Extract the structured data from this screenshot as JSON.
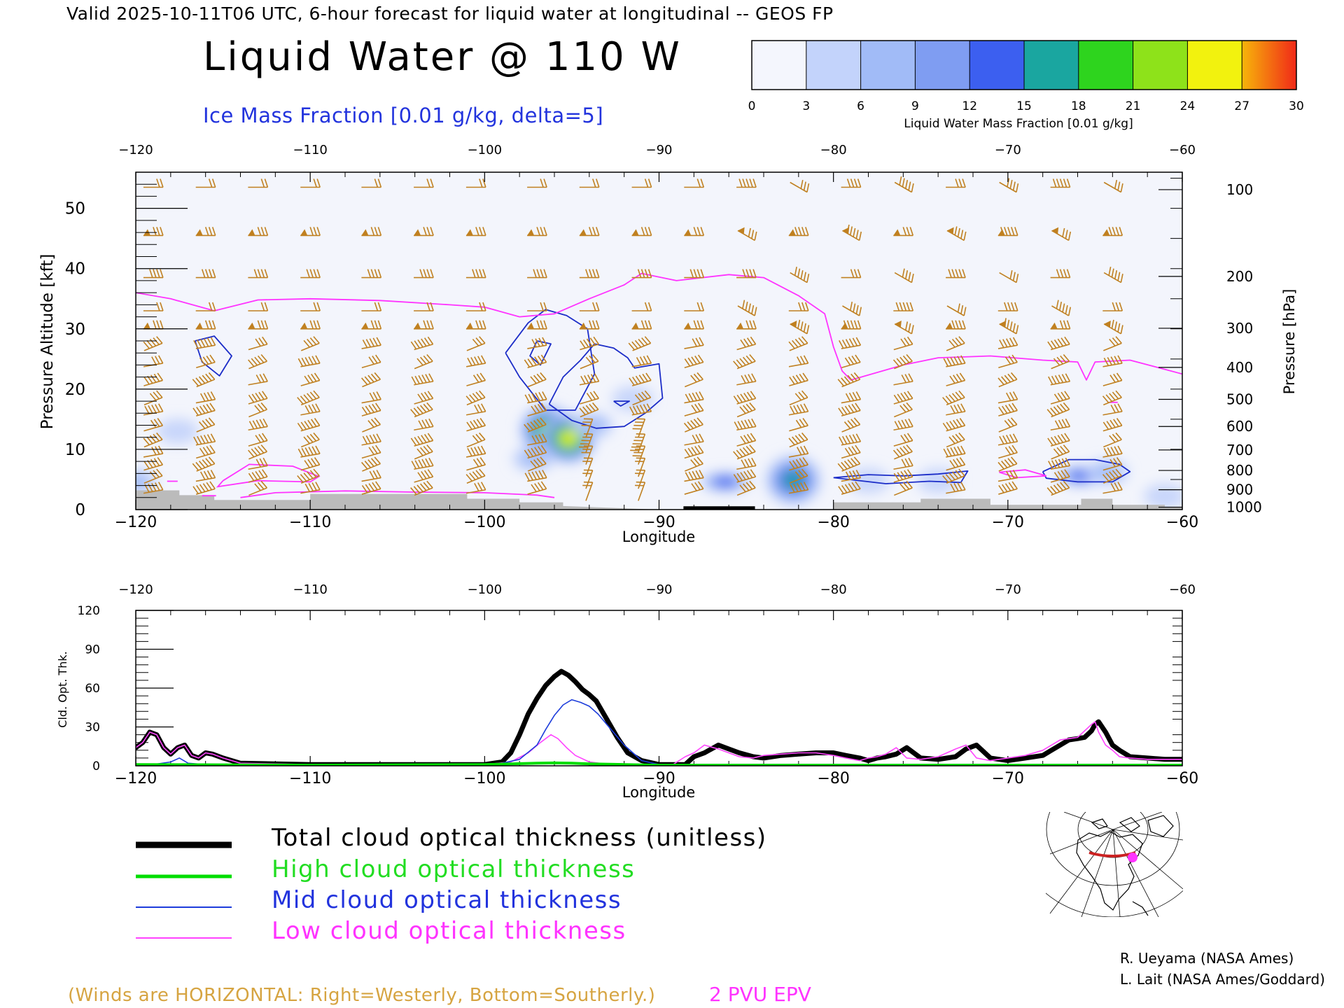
{
  "header": {
    "valid_line": "Valid 2025-10-11T06 UTC, 6-hour forecast for liquid water at longitudinal -- GEOS FP",
    "main_title": "Liquid Water @ 110 W",
    "ice_subtitle": "Ice Mass Fraction [0.01 g/kg, delta=5]"
  },
  "colorbar": {
    "ticks": [
      "0",
      "3",
      "6",
      "9",
      "12",
      "15",
      "18",
      "21",
      "24",
      "27",
      "30"
    ],
    "label": "Liquid Water Mass Fraction [0.01 g/kg]",
    "colors": [
      "#f4f6fd",
      "#c3d3fb",
      "#a1bbf7",
      "#7f9df2",
      "#3c5ff0",
      "#1aa6a0",
      "#2ed41e",
      "#8ee21a",
      "#f2f20e",
      "#f7b50a",
      "#f4700a"
    ]
  },
  "colors": {
    "wind_barb": "#c08020",
    "epv": "#ff33ff",
    "ice_contour": "#1c2dc8",
    "terrain": "#bbbbbb",
    "total": "#000000",
    "high": "#00dd00",
    "mid": "#1d3ddb",
    "low": "#ff44ff"
  },
  "chart_data": [
    {
      "type": "heatmap",
      "name": "liquid-water-cross-section",
      "title": "Liquid Water @ 110 W",
      "xlabel": "Longitude",
      "ylabel": "Pressure Altitude [kft]",
      "ylabel_right": "Pressure [hPa]",
      "xlim": [
        -120,
        -60
      ],
      "ylim": [
        0,
        56
      ],
      "x_ticks": [
        -120,
        -110,
        -100,
        -90,
        -80,
        -70,
        -60
      ],
      "x_tick_labels": [
        "−120",
        "−110",
        "−100",
        "−90",
        "−80",
        "−70",
        "−60"
      ],
      "y_ticks": [
        0,
        10,
        20,
        30,
        40,
        50
      ],
      "y_tick_labels": [
        "0",
        "10",
        "20",
        "30",
        "40",
        "50"
      ],
      "pressure_ticks": [
        "100",
        "200",
        "300",
        "400",
        "500",
        "600",
        "700",
        "800",
        "900",
        "1000"
      ],
      "pressure_tick_kft": [
        53.1,
        38.7,
        30.1,
        23.6,
        18.3,
        13.8,
        9.9,
        6.5,
        3.3,
        0.4
      ],
      "liquid_water_blobs": [
        {
          "lon": -96.4,
          "kft": 13.2,
          "value": 22
        },
        {
          "lon": -95.2,
          "kft": 11.8,
          "value": 26
        },
        {
          "lon": -97.2,
          "kft": 8.4,
          "value": 8
        },
        {
          "lon": -93.8,
          "kft": 14.0,
          "value": 6
        },
        {
          "lon": -91.5,
          "kft": 18.4,
          "value": 4
        },
        {
          "lon": -117.6,
          "kft": 13.0,
          "value": 5
        },
        {
          "lon": -120,
          "kft": 4.6,
          "value": 7
        },
        {
          "lon": -86.2,
          "kft": 4.6,
          "value": 14
        },
        {
          "lon": -82.3,
          "kft": 4.9,
          "value": 17
        },
        {
          "lon": -78,
          "kft": 4.8,
          "value": 5
        },
        {
          "lon": -74,
          "kft": 4.8,
          "value": 5
        },
        {
          "lon": -65.8,
          "kft": 5.6,
          "value": 12
        },
        {
          "lon": -64.3,
          "kft": 6.2,
          "value": 7
        },
        {
          "lon": -61,
          "kft": 2.2,
          "value": 4
        }
      ],
      "epv_2pvu_line": {
        "lon": [
          -120,
          -118,
          -115.5,
          -113,
          -110,
          -106,
          -102,
          -100,
          -98,
          -96,
          -94,
          -92,
          -91,
          -89,
          -86,
          -84,
          -82,
          -80.5,
          -80,
          -79.5,
          -79,
          -76,
          -74,
          -71,
          -68,
          -66,
          -65.5,
          -65,
          -63,
          -60
        ],
        "kft": [
          36,
          35,
          33,
          34.8,
          35,
          34.7,
          34,
          33.6,
          32,
          32.5,
          35,
          37.3,
          39.2,
          38,
          39,
          38.5,
          35.5,
          32.5,
          27,
          23,
          21.5,
          24,
          25.2,
          25.5,
          24.8,
          24.5,
          21.5,
          24.5,
          24.8,
          22.5
        ]
      },
      "ice_contours": [
        {
          "lon": [
            -116.6,
            -115.5,
            -114.5,
            -115.2,
            -116.2,
            -116.6
          ],
          "kft": [
            28,
            28.8,
            25.5,
            22.2,
            24.5,
            28
          ]
        },
        {
          "lon": [
            -98.8,
            -97.5,
            -96.5,
            -95.3,
            -94.1,
            -93.7,
            -94.8,
            -96.5,
            -98,
            -98.8
          ],
          "kft": [
            26,
            31,
            33.2,
            32.2,
            30,
            22.5,
            16.5,
            16.5,
            22,
            26
          ]
        },
        {
          "lon": [
            -97,
            -96.2,
            -96.8,
            -97.4,
            -97
          ],
          "kft": [
            28,
            27.5,
            24,
            25.5,
            28
          ]
        },
        {
          "lon": [
            -96.3,
            -95.5,
            -94.5,
            -93.7,
            -92.6,
            -91.8,
            -91.4,
            -90,
            -89.8,
            -90.8,
            -92,
            -93.6,
            -95,
            -96.3
          ],
          "kft": [
            17.5,
            22,
            24.8,
            27.5,
            26.8,
            25.2,
            23.5,
            24.2,
            18.5,
            16,
            13.8,
            13.5,
            14.8,
            17.5
          ]
        },
        {
          "lon": [
            -92.6,
            -91.7,
            -92.2,
            -92.6
          ],
          "kft": [
            18,
            18,
            17.2,
            18
          ]
        },
        {
          "lon": [
            -80,
            -78,
            -76,
            -74,
            -72.3,
            -72.7,
            -74.5,
            -77,
            -80
          ],
          "kft": [
            5.3,
            5.8,
            5.6,
            5.9,
            6.4,
            4.5,
            4.7,
            4.3,
            5.3
          ]
        },
        {
          "lon": [
            -68,
            -66.5,
            -65,
            -63.6,
            -63,
            -64,
            -66,
            -67.8,
            -68
          ],
          "kft": [
            6.3,
            8.3,
            8.3,
            7.5,
            6.3,
            4.6,
            4.6,
            5.2,
            6.3
          ]
        }
      ],
      "terrain_kft": {
        "lon": [
          -120,
          -117.5,
          -117.5,
          -115.5,
          -115.5,
          -110,
          -110,
          -101,
          -101,
          -98,
          -98,
          -95.5,
          -95.5,
          -90,
          -80,
          -80,
          -75,
          -75,
          -71,
          -71,
          -65.8,
          -65.8,
          -64,
          -64,
          -61,
          -61,
          -60
        ],
        "kft": [
          3.2,
          3.2,
          2.4,
          2.4,
          1.6,
          1.6,
          2.6,
          2.6,
          1.8,
          1.8,
          1.2,
          1.2,
          0.6,
          0,
          0,
          1.2,
          1.2,
          1.8,
          1.8,
          0.8,
          0.8,
          1.8,
          1.8,
          0.8,
          0.8,
          0.5,
          0.5
        ]
      },
      "wind_barbs": {
        "columns_lon": [
          -119,
          -116,
          -113,
          -110,
          -106.5,
          -103.5,
          -100.5,
          -97,
          -94,
          -91,
          -88,
          -85,
          -82,
          -79,
          -76,
          -73,
          -70,
          -67,
          -64
        ],
        "rows_kft": [
          53.5,
          45.5,
          38.5,
          33,
          30,
          27,
          24,
          21,
          18,
          16,
          13.5,
          11,
          9,
          7,
          5,
          3
        ],
        "notes": "orange barbs, westerly flow aloft"
      }
    },
    {
      "type": "line",
      "name": "cloud-optical-thickness",
      "xlabel": "Longitude",
      "ylabel": "Cld. Opt. Thk.",
      "xlim": [
        -120,
        -60
      ],
      "ylim": [
        0,
        120
      ],
      "x_ticks": [
        -120,
        -110,
        -100,
        -90,
        -80,
        -70,
        -60
      ],
      "x_tick_labels": [
        "−120",
        "−110",
        "−100",
        "−90",
        "−80",
        "−70",
        "−60"
      ],
      "y_ticks": [
        0,
        30,
        60,
        90,
        120
      ],
      "y_tick_labels": [
        "0",
        "30",
        "60",
        "90",
        "120"
      ],
      "series": [
        {
          "name": "Total cloud optical thickness (unitless)",
          "key": "total",
          "x": [
            -120,
            -119.6,
            -119.2,
            -118.8,
            -118.4,
            -118,
            -117.6,
            -117.2,
            -116.8,
            -116.4,
            -116,
            -115.6,
            -115,
            -114,
            -110,
            -100,
            -99,
            -98.5,
            -98,
            -97.5,
            -97,
            -96.5,
            -96,
            -95.6,
            -95.2,
            -94.8,
            -94.4,
            -94,
            -93.6,
            -93,
            -92.4,
            -91.8,
            -91,
            -90,
            -89.2,
            -88.5,
            -88,
            -87.4,
            -86.6,
            -86,
            -85.4,
            -84.6,
            -84,
            -83,
            -82,
            -81,
            -80,
            -79.3,
            -78.5,
            -78,
            -77.5,
            -77,
            -76.4,
            -75.8,
            -75,
            -74,
            -73,
            -72.4,
            -71.8,
            -71,
            -70,
            -69,
            -68,
            -67.5,
            -67,
            -66.5,
            -66,
            -65.6,
            -65.2,
            -65,
            -64.8,
            -64.4,
            -64,
            -63.6,
            -63,
            -62,
            -61,
            -60
          ],
          "y": [
            14,
            18,
            26,
            24,
            14,
            9,
            14,
            16,
            8,
            6,
            10,
            9,
            6,
            2,
            1,
            1,
            3,
            10,
            24,
            40,
            52,
            62,
            69,
            73,
            70,
            65,
            59,
            55,
            50,
            36,
            22,
            10,
            4,
            1,
            1,
            1,
            7,
            10,
            16,
            13,
            10,
            7,
            6,
            8,
            9,
            10,
            10,
            8,
            6,
            4,
            6,
            7,
            9,
            14,
            6,
            5,
            7,
            13,
            16,
            6,
            4,
            6,
            8,
            12,
            16,
            20,
            21,
            22,
            27,
            32,
            34,
            26,
            16,
            12,
            7,
            6,
            5,
            5
          ]
        },
        {
          "name": "High cloud optical thickness",
          "key": "high",
          "x": [
            -120,
            -110,
            -100,
            -97,
            -96,
            -95,
            -94,
            -92,
            -90,
            -80,
            -70,
            -60
          ],
          "y": [
            1,
            0.5,
            1,
            2,
            2.2,
            2,
            1.5,
            1,
            0.5,
            0.5,
            0.5,
            0.5
          ]
        },
        {
          "name": "Mid cloud optical thickness",
          "key": "mid",
          "x": [
            -120,
            -119,
            -118,
            -117.5,
            -117,
            -116,
            -115,
            -110,
            -100,
            -99,
            -98,
            -97,
            -96.5,
            -96,
            -95.5,
            -95,
            -94.5,
            -94,
            -93.5,
            -93,
            -92,
            -91,
            -90,
            -60
          ],
          "y": [
            1,
            1,
            3,
            6,
            2,
            1,
            1,
            1,
            1,
            2,
            5,
            16,
            28,
            39,
            47,
            51,
            49,
            46,
            40,
            32,
            16,
            4,
            1,
            1
          ]
        },
        {
          "name": "Low cloud optical thickness",
          "key": "low",
          "x": [
            -120,
            -119.6,
            -119.2,
            -118.8,
            -118.4,
            -118,
            -117.6,
            -117.2,
            -116.8,
            -116.4,
            -116,
            -115.6,
            -115,
            -114,
            -110,
            -100,
            -98.5,
            -97.5,
            -96.8,
            -96.2,
            -95.8,
            -95.3,
            -94.8,
            -94,
            -92.8,
            -90,
            -89.2,
            -88.5,
            -88,
            -87.4,
            -86.6,
            -86,
            -85.4,
            -84.6,
            -84,
            -83,
            -82,
            -81,
            -80,
            -79.3,
            -78.5,
            -78,
            -77.5,
            -77,
            -76.4,
            -75.8,
            -75,
            -74,
            -73,
            -72.4,
            -71.8,
            -71,
            -70,
            -69,
            -68,
            -67.5,
            -67,
            -66.5,
            -66,
            -65.6,
            -65.2,
            -65,
            -64.8,
            -64.4,
            -64,
            -63.6,
            -63,
            -62,
            -61,
            -60
          ],
          "y": [
            14,
            18,
            26,
            24,
            14,
            9,
            14,
            16,
            8,
            6,
            10,
            9,
            6,
            2,
            1,
            1,
            3,
            10,
            18,
            24,
            21,
            14,
            8,
            3,
            1,
            1,
            1,
            7,
            10,
            16,
            13,
            10,
            7,
            6,
            8,
            9,
            10,
            10,
            8,
            6,
            4,
            6,
            7,
            9,
            14,
            6,
            5,
            7,
            13,
            16,
            6,
            4,
            6,
            8,
            12,
            16,
            20,
            21,
            22,
            27,
            32,
            34,
            26,
            16,
            12,
            7,
            6,
            5,
            5,
            5
          ]
        }
      ]
    }
  ],
  "legend": {
    "total": "Total cloud optical thickness (unitless)",
    "high": "High cloud optical thickness",
    "mid": "Mid cloud optical thickness",
    "low": "Low cloud optical thickness"
  },
  "footer": {
    "winds_note": "(Winds are HORIZONTAL: Right=Westerly, Bottom=Southerly.)",
    "epv_note": "2 PVU EPV",
    "credit1": "R. Ueyama (NASA Ames)",
    "credit2": "L. Lait (NASA Ames/Goddard)"
  }
}
